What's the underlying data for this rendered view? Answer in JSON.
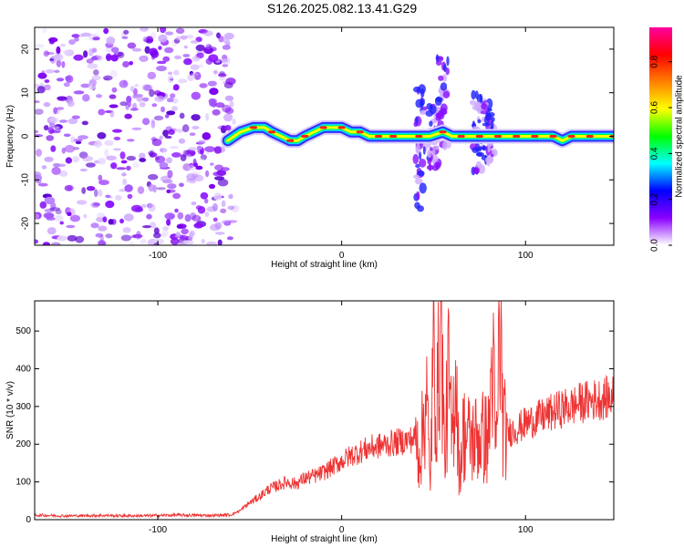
{
  "title": "S126.2025.082.13.41.G29",
  "chart_data": [
    {
      "type": "heatmap",
      "title": "S126.2025.082.13.41.G29",
      "xlabel": "Height of straight line (km)",
      "ylabel": "Frequency (Hz)",
      "xlim": [
        -167,
        148
      ],
      "ylim": [
        -25,
        25
      ],
      "xticks": [
        -100,
        0,
        100
      ],
      "xtick_labels": [
        "-100",
        "0",
        "100"
      ],
      "yticks": [
        -20,
        -10,
        0,
        10,
        20
      ],
      "ytick_labels": [
        "-20",
        "-10",
        "0",
        "10",
        "20"
      ],
      "colorbar": {
        "label": "Normalized spectral amplitude",
        "range": [
          0,
          0.95
        ],
        "ticks": [
          0.0,
          0.2,
          0.4,
          0.6,
          0.8
        ],
        "tick_labels": [
          "0.0",
          "0.2",
          "0.4",
          "0.6",
          "0.8"
        ],
        "colors": [
          "#ffffff",
          "#8a00ff",
          "#0000ff",
          "#00ffff",
          "#00ff00",
          "#ffff00",
          "#ff8000",
          "#ff0000",
          "#ff00a0"
        ]
      },
      "noise_region_x": [
        -167,
        -58
      ],
      "ridge": {
        "x": [
          -62,
          -55,
          -48,
          -42,
          -38,
          -33,
          -28,
          -24,
          -20,
          -15,
          -10,
          -5,
          0,
          5,
          10,
          15,
          20,
          25,
          28,
          35,
          42,
          48,
          55,
          60,
          65,
          70,
          75,
          80,
          85,
          90,
          95,
          100,
          105,
          110,
          115,
          120,
          125,
          130,
          135,
          140,
          148
        ],
        "y": [
          -1,
          1,
          2,
          2,
          1,
          0,
          -1,
          -1,
          0,
          1,
          2,
          2,
          2,
          1,
          1,
          0,
          0,
          0,
          0,
          0,
          0,
          0,
          1,
          0,
          0,
          0,
          0,
          0,
          0,
          0,
          0,
          0,
          0,
          0,
          0,
          -1,
          0,
          0,
          0,
          0,
          0
        ]
      },
      "bursts": [
        {
          "x": 43,
          "y_range": [
            -18,
            12
          ]
        },
        {
          "x": 50,
          "y_range": [
            -8,
            8
          ]
        },
        {
          "x": 55,
          "y_range": [
            -3,
            19
          ]
        },
        {
          "x": 74,
          "y_range": [
            -8,
            10
          ]
        },
        {
          "x": 80,
          "y_range": [
            -6,
            8
          ]
        }
      ]
    },
    {
      "type": "line",
      "xlabel": "Height of straight line (km)",
      "ylabel": "SNR (10 * v/v)",
      "xlim": [
        -167,
        148
      ],
      "ylim": [
        0,
        580
      ],
      "xticks": [
        -100,
        0,
        100
      ],
      "xtick_labels": [
        "-100",
        "0",
        "100"
      ],
      "yticks": [
        0,
        100,
        200,
        300,
        400,
        500
      ],
      "ytick_labels": [
        "0",
        "100",
        "200",
        "300",
        "400",
        "500"
      ],
      "color": "#ee3333",
      "series": [
        {
          "x": [
            -167,
            -150,
            -130,
            -110,
            -90,
            -70,
            -60,
            -55,
            -50,
            -45,
            -40,
            -35,
            -30,
            -25,
            -20,
            -15,
            -10,
            -5,
            0,
            5,
            10,
            15,
            20,
            25,
            30,
            35,
            40,
            42,
            44,
            46,
            48,
            50,
            52,
            54,
            56,
            58,
            60,
            62,
            64,
            66,
            70,
            75,
            80,
            82,
            84,
            86,
            88,
            90,
            95,
            100,
            105,
            110,
            115,
            120,
            125,
            130,
            135,
            140,
            148
          ],
          "y": [
            12,
            10,
            11,
            10,
            12,
            11,
            13,
            25,
            45,
            60,
            80,
            90,
            100,
            95,
            110,
            115,
            125,
            140,
            155,
            170,
            180,
            190,
            195,
            200,
            205,
            210,
            215,
            180,
            220,
            360,
            90,
            440,
            300,
            580,
            150,
            380,
            200,
            420,
            120,
            230,
            210,
            220,
            215,
            440,
            160,
            520,
            240,
            230,
            240,
            255,
            265,
            275,
            285,
            295,
            300,
            310,
            315,
            320,
            325
          ]
        }
      ]
    }
  ]
}
